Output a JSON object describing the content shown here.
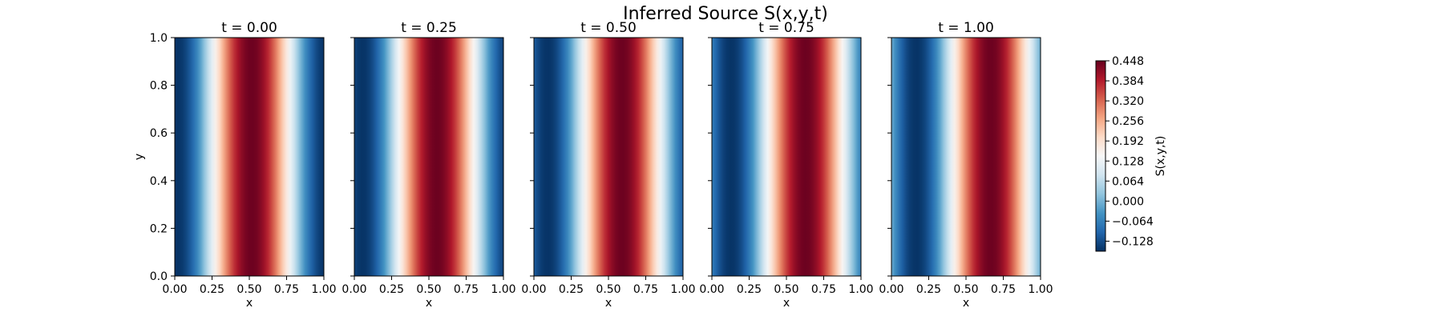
{
  "chart_data": {
    "type": "heatmap",
    "title": "Inferred Source S(x,y,t)",
    "panels": [
      {
        "title": "t = 0.00",
        "t": 0.0
      },
      {
        "title": "t = 0.25",
        "t": 0.25
      },
      {
        "title": "t = 0.50",
        "t": 0.5
      },
      {
        "title": "t = 0.75",
        "t": 0.75
      },
      {
        "title": "t = 1.00",
        "t": 1.0
      }
    ],
    "xlabel": "x",
    "ylabel": "y",
    "xlim": [
      0,
      1
    ],
    "ylim": [
      0,
      1
    ],
    "x_ticks": [
      "0.00",
      "0.25",
      "0.50",
      "0.75",
      "1.00"
    ],
    "y_ticks": [
      "0.0",
      "0.2",
      "0.4",
      "0.6",
      "0.8",
      "1.0"
    ],
    "colorbar": {
      "label": "S(x,y,t)",
      "colormap": "RdBu_r",
      "vmin": -0.16,
      "vmax": 0.448,
      "ticks": [
        "−0.128",
        "−0.064",
        "0.000",
        "0.064",
        "0.128",
        "0.192",
        "0.256",
        "0.320",
        "0.384",
        "0.448"
      ],
      "tick_values": [
        -0.128,
        -0.064,
        0.0,
        0.064,
        0.128,
        0.192,
        0.256,
        0.32,
        0.384,
        0.448
      ]
    },
    "colors": {
      "low": "#053061",
      "mid": "#f7f7f7",
      "high": "#67001f"
    }
  }
}
